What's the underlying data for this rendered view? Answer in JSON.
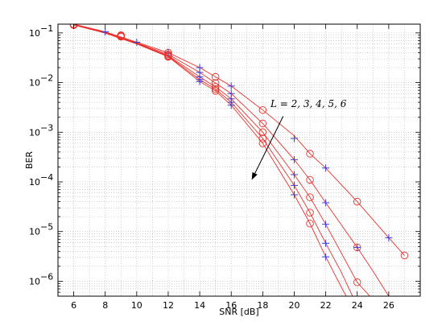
{
  "chart_data": {
    "type": "line",
    "title": "",
    "xlabel": "SNR [dB]",
    "ylabel": "BER",
    "xlim": [
      5,
      28
    ],
    "ylim": [
      5e-07,
      0.15
    ],
    "yscale": "log",
    "grid": true,
    "xticks": [
      6,
      8,
      10,
      12,
      14,
      16,
      18,
      20,
      22,
      24,
      26
    ],
    "yticks": [
      {
        "value": 1e-06,
        "base": "10",
        "exp": "−6"
      },
      {
        "value": 1e-05,
        "base": "10",
        "exp": "−5"
      },
      {
        "value": 0.0001,
        "base": "10",
        "exp": "−4"
      },
      {
        "value": 0.001,
        "base": "10",
        "exp": "−3"
      },
      {
        "value": 0.01,
        "base": "10",
        "exp": "−2"
      },
      {
        "value": 0.1,
        "base": "10",
        "exp": "−1"
      }
    ],
    "line_color": "#e8322c",
    "circle_color": "#e8322c",
    "plus_color": "#3a3ad6",
    "annotation": {
      "text": "L = 2, 3, 4, 5, 6",
      "arrow_from": [
        19.3,
        0.0021
      ],
      "arrow_to": [
        17.3,
        0.00011
      ]
    },
    "series": [
      {
        "label": "L=2",
        "line": [
          [
            6,
            0.15
          ],
          [
            8,
            0.105
          ],
          [
            10,
            0.065
          ],
          [
            12,
            0.04
          ],
          [
            14,
            0.02
          ],
          [
            15,
            0.013
          ],
          [
            16,
            0.0085
          ],
          [
            18,
            0.0028
          ],
          [
            20,
            0.00085
          ],
          [
            21,
            0.00037
          ],
          [
            22,
            0.00019
          ],
          [
            24,
            4e-05
          ],
          [
            26,
            7.5e-06
          ],
          [
            27,
            3.3e-06
          ]
        ],
        "circles": [
          [
            6,
            0.15
          ],
          [
            9,
            0.09
          ],
          [
            12,
            0.04
          ],
          [
            15,
            0.013
          ],
          [
            18,
            0.0028
          ],
          [
            21,
            0.00037
          ],
          [
            24,
            4e-05
          ],
          [
            27,
            3.3e-06
          ]
        ],
        "plus": [
          [
            6,
            0.15
          ],
          [
            8,
            0.105
          ],
          [
            10,
            0.065
          ],
          [
            12,
            0.04
          ],
          [
            14,
            0.02
          ],
          [
            16,
            0.0085
          ],
          [
            20,
            0.00075
          ],
          [
            22,
            0.00019
          ],
          [
            26,
            7.5e-06
          ]
        ]
      },
      {
        "label": "L=3",
        "line": [
          [
            6,
            0.148
          ],
          [
            8,
            0.103
          ],
          [
            10,
            0.063
          ],
          [
            12,
            0.037
          ],
          [
            14,
            0.016
          ],
          [
            15,
            0.0098
          ],
          [
            16,
            0.006
          ],
          [
            18,
            0.0015
          ],
          [
            20,
            0.00028
          ],
          [
            21,
            0.00011
          ],
          [
            22,
            3.8e-05
          ],
          [
            24,
            4.8e-06
          ],
          [
            25,
            1.6e-06
          ],
          [
            26,
            5e-07
          ]
        ],
        "circles": [
          [
            6,
            0.148
          ],
          [
            9,
            0.088
          ],
          [
            12,
            0.037
          ],
          [
            15,
            0.0098
          ],
          [
            18,
            0.0015
          ],
          [
            21,
            0.00011
          ],
          [
            24,
            4.8e-06
          ]
        ],
        "plus": [
          [
            14,
            0.016
          ],
          [
            16,
            0.006
          ],
          [
            20,
            0.00028
          ],
          [
            22,
            3.8e-05
          ],
          [
            24,
            4.8e-06
          ]
        ]
      },
      {
        "label": "L=4",
        "line": [
          [
            6,
            0.146
          ],
          [
            8,
            0.101
          ],
          [
            10,
            0.062
          ],
          [
            12,
            0.035
          ],
          [
            14,
            0.013
          ],
          [
            15,
            0.0082
          ],
          [
            16,
            0.0047
          ],
          [
            18,
            0.001
          ],
          [
            20,
            0.00014
          ],
          [
            21,
            4.9e-05
          ],
          [
            22,
            1.4e-05
          ],
          [
            24,
            9.5e-07
          ],
          [
            24.8,
            5e-07
          ]
        ],
        "circles": [
          [
            6,
            0.146
          ],
          [
            9,
            0.086
          ],
          [
            12,
            0.035
          ],
          [
            15,
            0.0082
          ],
          [
            18,
            0.001
          ],
          [
            21,
            4.9e-05
          ],
          [
            24,
            9.5e-07
          ]
        ],
        "plus": [
          [
            14,
            0.013
          ],
          [
            16,
            0.0047
          ],
          [
            20,
            0.00014
          ],
          [
            22,
            1.4e-05
          ]
        ]
      },
      {
        "label": "L=5",
        "line": [
          [
            6,
            0.145
          ],
          [
            8,
            0.1
          ],
          [
            10,
            0.061
          ],
          [
            12,
            0.034
          ],
          [
            14,
            0.0115
          ],
          [
            15,
            0.0074
          ],
          [
            16,
            0.004
          ],
          [
            18,
            0.00075
          ],
          [
            20,
            8.5e-05
          ],
          [
            21,
            2.4e-05
          ],
          [
            22,
            5.8e-06
          ],
          [
            23,
            1.5e-06
          ],
          [
            23.7,
            5e-07
          ]
        ],
        "circles": [
          [
            6,
            0.145
          ],
          [
            9,
            0.085
          ],
          [
            12,
            0.034
          ],
          [
            15,
            0.0074
          ],
          [
            18,
            0.00075
          ],
          [
            21,
            2.4e-05
          ]
        ],
        "plus": [
          [
            14,
            0.0115
          ],
          [
            16,
            0.004
          ],
          [
            20,
            8.5e-05
          ],
          [
            22,
            5.8e-06
          ]
        ]
      },
      {
        "label": "L=6",
        "line": [
          [
            6,
            0.144
          ],
          [
            8,
            0.099
          ],
          [
            10,
            0.06
          ],
          [
            12,
            0.033
          ],
          [
            14,
            0.0105
          ],
          [
            15,
            0.0068
          ],
          [
            16,
            0.0035
          ],
          [
            18,
            0.0006
          ],
          [
            20,
            5.5e-05
          ],
          [
            21,
            1.45e-05
          ],
          [
            22,
            3.1e-06
          ],
          [
            23,
            7.5e-07
          ],
          [
            23.3,
            5e-07
          ]
        ],
        "circles": [
          [
            6,
            0.144
          ],
          [
            9,
            0.084
          ],
          [
            12,
            0.033
          ],
          [
            15,
            0.0068
          ],
          [
            18,
            0.0006
          ],
          [
            21,
            1.45e-05
          ]
        ],
        "plus": [
          [
            14,
            0.0105
          ],
          [
            16,
            0.0035
          ],
          [
            20,
            5.5e-05
          ],
          [
            22,
            3.1e-06
          ]
        ]
      }
    ]
  }
}
